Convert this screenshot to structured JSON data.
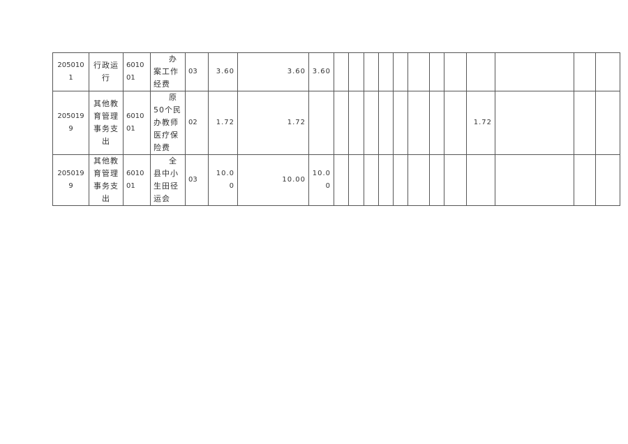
{
  "table": {
    "rows": [
      {
        "cells": [
          "2050101",
          "行政运行",
          "601001",
          "办案工作经费",
          "03",
          "3.60",
          "3.60",
          "3.60",
          "",
          "",
          "",
          "",
          "",
          "",
          "",
          "",
          "",
          "",
          "",
          ""
        ]
      },
      {
        "cells": [
          "2050199",
          "其他教育管理事务支出",
          "601001",
          "原50个民办教师医疗保险费",
          "02",
          "1.72",
          "1.72",
          "",
          "",
          "",
          "",
          "",
          "",
          "",
          "",
          "",
          "1.72",
          "",
          "",
          ""
        ]
      },
      {
        "cells": [
          "2050199",
          "其他教育管理事务支出",
          "601001",
          "全县中小生田径运会",
          "03",
          "10.00",
          "10.00",
          "10.00",
          "",
          "",
          "",
          "",
          "",
          "",
          "",
          "",
          "",
          "",
          "",
          ""
        ]
      }
    ]
  }
}
